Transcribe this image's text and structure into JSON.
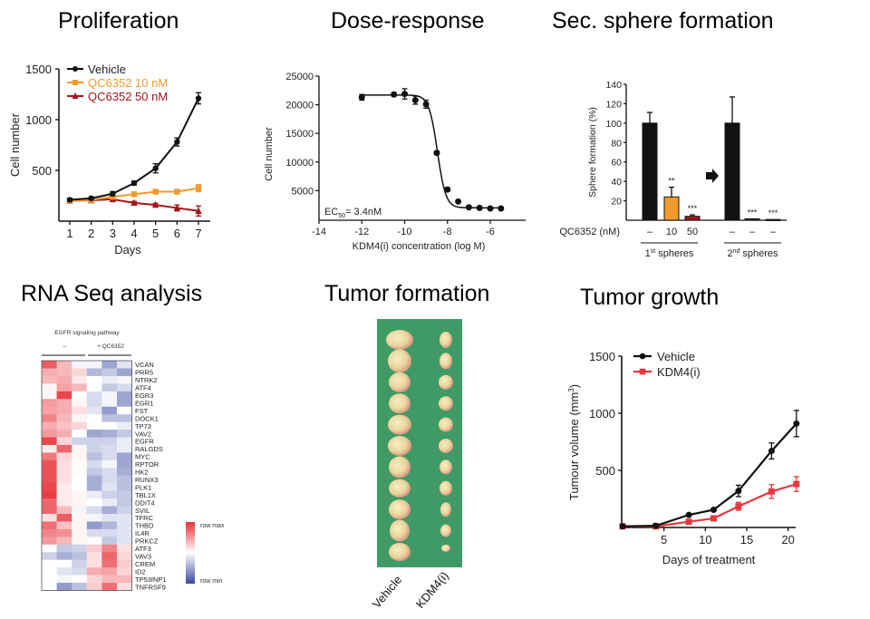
{
  "panels": {
    "proliferation": {
      "title": "Proliferation"
    },
    "dose_response": {
      "title": "Dose-response"
    },
    "sphere": {
      "title": "Sec. sphere formation"
    },
    "rnaseq": {
      "title": "RNA Seq analysis"
    },
    "tumor_formation": {
      "title": "Tumor formation",
      "labels": [
        "Vehicle",
        "KDM4(i)"
      ],
      "tumor_count_per_group": 11
    },
    "tumor_growth": {
      "title": "Tumor growth"
    }
  },
  "colors": {
    "black": "#111111",
    "orange": "#f39a2e",
    "darkred": "#a3151b",
    "red": "#e8383d",
    "heat_red": "#e8333a",
    "heat_blue": "#3a4aa3",
    "felt_green": "#3f9a66"
  },
  "chart_data": [
    {
      "id": "proliferation",
      "type": "line",
      "title": "Proliferation",
      "xlabel": "Days",
      "ylabel": "Cell number",
      "x": [
        1,
        2,
        3,
        4,
        5,
        6,
        7
      ],
      "xticks": [
        "1",
        "2",
        "3",
        "4",
        "5",
        "6",
        "7"
      ],
      "yticks": [
        "500",
        "1000",
        "1500"
      ],
      "yticks_values": [
        500,
        1000,
        1500
      ],
      "ylim": [
        0,
        1500
      ],
      "legend_position": "top-left",
      "series": [
        {
          "name": "Vehicle",
          "color": "#111111",
          "marker": "circle",
          "values": [
            210,
            225,
            270,
            375,
            520,
            780,
            1210
          ],
          "err": [
            15,
            15,
            20,
            20,
            45,
            40,
            55
          ]
        },
        {
          "name": "QC6352 10 nM",
          "color": "#f39a2e",
          "marker": "square",
          "values": [
            200,
            210,
            240,
            265,
            290,
            290,
            325
          ],
          "err": [
            10,
            10,
            10,
            15,
            15,
            20,
            35
          ]
        },
        {
          "name": "QC6352 50 nM",
          "color": "#a3151b",
          "marker": "triangle",
          "values": [
            200,
            205,
            215,
            180,
            160,
            130,
            100
          ],
          "err": [
            10,
            10,
            15,
            15,
            15,
            30,
            50
          ]
        }
      ]
    },
    {
      "id": "dose_response",
      "type": "scatter",
      "xlabel": "KDM4(i) concentration (log M)",
      "ylabel": "Cell number",
      "xlim": [
        -14,
        -5
      ],
      "ylim": [
        0,
        25000
      ],
      "xticks": [
        "-14",
        "-12",
        "-10",
        "-8",
        "-6"
      ],
      "xticks_values": [
        -14,
        -12,
        -10,
        -8,
        -6
      ],
      "yticks": [
        "5000",
        "10000",
        "15000",
        "20000",
        "25000"
      ],
      "yticks_values": [
        5000,
        10000,
        15000,
        20000,
        25000
      ],
      "annotation": {
        "prefix": "EC",
        "sub": "50",
        "suffix": "= 3.4nM"
      },
      "fit": {
        "top": 21700,
        "bottom": 2000,
        "log_ec50": -8.47,
        "hill": 2.2
      },
      "series": [
        {
          "name": "points",
          "color": "#111111",
          "x": [
            -12,
            -10.5,
            -10,
            -9.5,
            -9,
            -8.5,
            -8,
            -7.5,
            -7,
            -6.5,
            -6,
            -5.5
          ],
          "values": [
            21300,
            21800,
            21900,
            20800,
            20100,
            11600,
            5200,
            3100,
            2100,
            2000,
            1900,
            1900
          ],
          "err": [
            500,
            300,
            900,
            700,
            700,
            300,
            300,
            200,
            100,
            100,
            100,
            100
          ]
        }
      ]
    },
    {
      "id": "sphere",
      "type": "bar",
      "ylabel": "Sphere formation (%)",
      "ylim": [
        0,
        140
      ],
      "yticks": [
        "20",
        "40",
        "60",
        "80",
        "100",
        "120",
        "140"
      ],
      "yticks_values": [
        20,
        40,
        60,
        80,
        100,
        120,
        140
      ],
      "row_label": "QC6352 (nM)",
      "categories": [
        "–",
        "10",
        "50",
        "–",
        "–",
        "–"
      ],
      "values": [
        100,
        24,
        4,
        100,
        1.5,
        0.8
      ],
      "err": [
        11,
        10,
        1.5,
        27,
        0,
        0
      ],
      "bar_colors": [
        "#111111",
        "#f39a2e",
        "#a3151b",
        "#111111",
        "#3a2a1a",
        "#111111"
      ],
      "significance": [
        "",
        "**",
        "***",
        "",
        "***",
        "***"
      ],
      "groups": [
        {
          "label": "1",
          "sup": "st",
          "rest": " spheres"
        },
        {
          "label": "2",
          "sup": "nd",
          "rest": " spheres"
        }
      ]
    },
    {
      "id": "rnaseq",
      "type": "heatmap",
      "header": "EGFR signaling pathway",
      "group_labels": [
        "–",
        "+ QC6352"
      ],
      "legend": {
        "max": "row max",
        "min": "row min"
      },
      "rows": [
        "VCAN",
        "PRR5",
        "NTRK2",
        "ATF4",
        "EGR3",
        "EGR1",
        "FST",
        "DOCK1",
        "TP73",
        "VAV2",
        "EGFR",
        "RALGDS",
        "MYC",
        "RPTOR",
        "HK2",
        "RUNX3",
        "PLK1",
        "TBL1X",
        "DDIT4",
        "SVIL",
        "TFRC",
        "THBD",
        "IL4R",
        "PRKCZ",
        "ATF3",
        "VAV3",
        "CREM",
        "ID2",
        "TP53INP1",
        "TNFRSF9"
      ],
      "values": [
        [
          0.8,
          0.35,
          -0.05,
          -0.05,
          -0.5,
          -0.15
        ],
        [
          0.4,
          0.35,
          0.2,
          -0.4,
          -0.3,
          -0.5
        ],
        [
          0.35,
          0.4,
          0.1,
          0,
          -0.1,
          -0.05
        ],
        [
          0.05,
          0.45,
          0.35,
          0,
          -0.3,
          -0.2
        ],
        [
          0.05,
          0.9,
          0,
          -0.2,
          -0.05,
          -0.5
        ],
        [
          0.5,
          0.4,
          0.05,
          -0.2,
          -0.05,
          -0.5
        ],
        [
          0.45,
          0.4,
          0.15,
          -0.15,
          -0.55,
          0
        ],
        [
          0.6,
          0.35,
          0.05,
          0,
          -0.35,
          -0.35
        ],
        [
          0.4,
          0.3,
          0.2,
          0,
          0,
          -0.1
        ],
        [
          0.5,
          0.4,
          0,
          -0.5,
          -0.45,
          -0.3
        ],
        [
          0.9,
          0.2,
          -0.25,
          -0.25,
          -0.25,
          -0.1
        ],
        [
          0.1,
          0.75,
          0.05,
          -0.25,
          -0.2,
          -0.1
        ],
        [
          0.65,
          0.2,
          0.05,
          -0.35,
          -0.2,
          -0.5
        ],
        [
          0.85,
          0.15,
          0.02,
          -0.2,
          -0.05,
          -0.5
        ],
        [
          0.85,
          0.15,
          0.02,
          -0.3,
          -0.2,
          -0.45
        ],
        [
          0.85,
          0.15,
          0,
          -0.45,
          -0.2,
          -0.35
        ],
        [
          0.9,
          0.1,
          0,
          -0.45,
          -0.15,
          -0.35
        ],
        [
          0.95,
          0.1,
          0.05,
          -0.1,
          -0.25,
          -0.3
        ],
        [
          0.75,
          0.1,
          0.05,
          0,
          -0.1,
          -0.3
        ],
        [
          0.75,
          0.35,
          -0.05,
          -0.2,
          -0.45,
          -0.25
        ],
        [
          0.15,
          0.8,
          0.05,
          -0.05,
          -0.15,
          -0.15
        ],
        [
          0.7,
          0.3,
          0.05,
          -0.55,
          -0.4,
          -0.15
        ],
        [
          0.6,
          0.55,
          0.05,
          -0.2,
          -0.2,
          -0.15
        ],
        [
          0.5,
          0.35,
          0.05,
          0,
          -0.3,
          -0.15
        ],
        [
          0,
          -0.3,
          -0.25,
          0.25,
          0.6,
          0.15
        ],
        [
          -0.25,
          -0.45,
          -0.35,
          0.15,
          0.75,
          0.2
        ],
        [
          0,
          0,
          -0.25,
          0.15,
          0.7,
          0.25
        ],
        [
          0,
          -0.15,
          -0.2,
          0.4,
          0.45,
          0.2
        ],
        [
          0,
          -0.05,
          0,
          0.2,
          0.35,
          0.35
        ],
        [
          0,
          -0.55,
          -0.35,
          0.25,
          0.7,
          0.15
        ]
      ]
    },
    {
      "id": "tumor_growth",
      "type": "line",
      "xlabel": "Days of treatment",
      "ylabel_main": "Tumour volume (mm",
      "ylabel_sup": "3",
      "ylabel_end": ")",
      "xlim": [
        0,
        21.5
      ],
      "ylim": [
        0,
        1500
      ],
      "xticks": [
        "5",
        "10",
        "15",
        "20"
      ],
      "xticks_values": [
        5,
        10,
        15,
        20
      ],
      "yticks": [
        "500",
        "1000",
        "1500"
      ],
      "yticks_values": [
        500,
        1000,
        1500
      ],
      "legend_position": "top-left",
      "series": [
        {
          "name": "Vehicle",
          "color": "#111111",
          "marker": "circle",
          "x": [
            0,
            4,
            8,
            11,
            14,
            18,
            21
          ],
          "values": [
            10,
            15,
            110,
            155,
            320,
            670,
            910
          ],
          "err": [
            0,
            0,
            10,
            10,
            50,
            70,
            115
          ]
        },
        {
          "name": "KDM4(i)",
          "color": "#e8383d",
          "marker": "square",
          "x": [
            0,
            4,
            8,
            11,
            14,
            18,
            21
          ],
          "values": [
            10,
            10,
            50,
            80,
            185,
            315,
            380
          ],
          "err": [
            0,
            0,
            10,
            10,
            35,
            60,
            65
          ]
        }
      ]
    }
  ]
}
